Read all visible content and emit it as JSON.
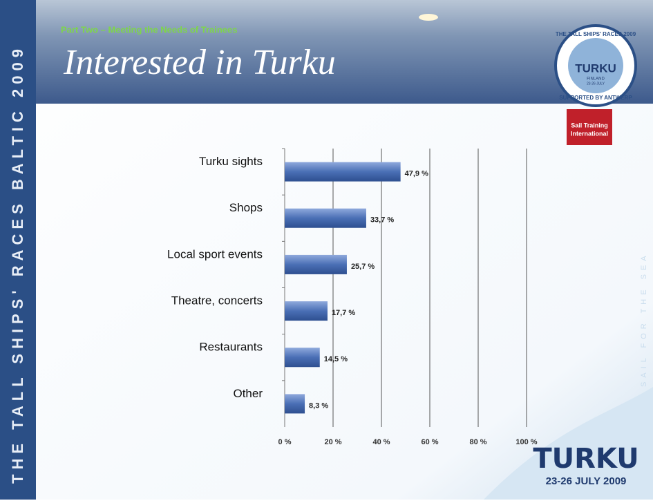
{
  "slide": {
    "side_text": "THE TALL SHIPS' RACES BALTIC 2009",
    "right_text": "SAIL FOR THE SEA",
    "subtitle": "Part Two – Meeting the Needs of Trainees",
    "logo": {
      "ring_top": "THE TALL SHIPS' RACES 2009",
      "city": "TURKU",
      "country": "FINLAND",
      "dates": "23-26 JULY",
      "ring_bottom": "SUPPORTED BY ANTWERP",
      "org_line1": "Sail Training",
      "org_line2": "International"
    },
    "footer_city": "TURKU",
    "footer_dates": "23-26 JULY 2009"
  },
  "chart_data": {
    "type": "hbar",
    "title": "Interested in Turku",
    "categories": [
      "Turku sights",
      "Shops",
      "Local sport events",
      "Theatre, concerts",
      "Restaurants",
      "Other"
    ],
    "values": [
      47.9,
      33.7,
      25.7,
      17.7,
      14.5,
      8.3
    ],
    "value_labels": [
      "47,9 %",
      "33,7 %",
      "25,7 %",
      "17,7 %",
      "14,5 %",
      "8,3 %"
    ],
    "color": "#4a6fb5",
    "xlim": [
      0,
      100
    ],
    "xticks": [
      {
        "value": 0,
        "label": "0 %"
      },
      {
        "value": 20,
        "label": "20 %"
      },
      {
        "value": 40,
        "label": "40 %"
      },
      {
        "value": 60,
        "label": "60 %"
      },
      {
        "value": 80,
        "label": "80 %"
      },
      {
        "value": 100,
        "label": "100 %"
      }
    ],
    "grid": true
  }
}
